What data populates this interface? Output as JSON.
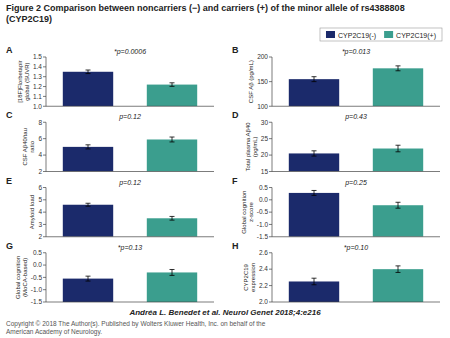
{
  "title": "Figure 2 Comparison between noncarriers (−) and carriers (+) of the minor allele of rs4388808\n(CYP2C19)",
  "subtitle": "Andréa L. Benedet et al. Neurol Genet 2018;4:e216",
  "annotations": [
    "Copyright © 2018 The Author(s). Published by Wolters Kluwer Health, Inc. on behalf of the\nAmerican Academy of Neurology."
  ],
  "legend": "upper right",
  "chart_data": [
    {
      "type": "bar",
      "title": "A",
      "annotations": [
        "*p=0.0006"
      ],
      "ylabel": "[18F]Florbetapir\nglobal (SUVR)",
      "categories": [
        null
      ],
      "series": [
        {
          "name": "CYP2C19(-)",
          "color": "#1b2a6b",
          "values": [
            1.35
          ],
          "errors": [
            0.018
          ]
        },
        {
          "name": "CYP2C19(+)",
          "color": "#3b9e8e",
          "values": [
            1.22
          ],
          "errors": [
            0.018
          ]
        }
      ],
      "ylim": [
        1.0,
        1.5
      ],
      "yticks": [
        {
          "value": 1.0,
          "label": "1.0"
        },
        1.1,
        1.2,
        1.3,
        1.4,
        1.5
      ],
      "tick_labels": "y"
    },
    {
      "type": "bar",
      "title": "B",
      "annotations": [
        "*p=0.013"
      ],
      "ylabel": "CSF Aβ (pg/mL)",
      "categories": [
        null
      ],
      "series": [
        {
          "name": "CYP2C19(-)",
          "color": "#1b2a6b",
          "values": [
            155
          ],
          "errors": [
            5
          ]
        },
        {
          "name": "CYP2C19(+)",
          "color": "#3b9e8e",
          "values": [
            177
          ],
          "errors": [
            5
          ]
        }
      ],
      "ylim": [
        100,
        200
      ],
      "yticks": [
        100,
        150,
        200
      ],
      "tick_labels": "y"
    },
    {
      "type": "bar",
      "title": "C",
      "annotations": [
        "p=0.12"
      ],
      "ylabel": "CSF Aβ40/tau ratio",
      "categories": [
        null
      ],
      "series": [
        {
          "name": "CYP2C19(-)",
          "color": "#1b2a6b",
          "values": [
            5.0
          ],
          "errors": [
            0.25
          ]
        },
        {
          "name": "CYP2C19(+)",
          "color": "#3b9e8e",
          "values": [
            5.9
          ],
          "errors": [
            0.3
          ]
        }
      ],
      "ylim": [
        2,
        8
      ],
      "yticks": [
        2,
        4,
        6,
        8
      ],
      "tick_labels": "y"
    },
    {
      "type": "bar",
      "title": "D",
      "annotations": [
        "p=0.43"
      ],
      "ylabel": "Total plasma Aβ40\n(pg/mL)",
      "categories": [
        null
      ],
      "series": [
        {
          "name": "CYP2C19(-)",
          "color": "#1b2a6b",
          "values": [
            20.5
          ],
          "errors": [
            0.8
          ]
        },
        {
          "name": "CYP2C19(+)",
          "color": "#3b9e8e",
          "values": [
            22.0
          ],
          "errors": [
            1.0
          ]
        }
      ],
      "ylim": [
        15,
        30
      ],
      "yticks": [
        15,
        20,
        25,
        30
      ],
      "tick_labels": "y"
    },
    {
      "type": "bar",
      "title": "E",
      "annotations": [
        "p=0.12"
      ],
      "ylabel": "Amyloid load",
      "categories": [
        null
      ],
      "series": [
        {
          "name": "CYP2C19(-)",
          "color": "#1b2a6b",
          "values": [
            4.6
          ],
          "errors": [
            0.12
          ]
        },
        {
          "name": "CYP2C19(+)",
          "color": "#3b9e8e",
          "values": [
            3.5
          ],
          "errors": [
            0.15
          ]
        }
      ],
      "ylim": [
        2,
        6
      ],
      "yticks": [
        2,
        3,
        4,
        5,
        6
      ],
      "tick_labels": "y"
    },
    {
      "type": "bar",
      "title": "F",
      "annotations": [
        "p=0.25"
      ],
      "ylabel": "Global cognition z-score",
      "categories": [
        null
      ],
      "series": [
        {
          "name": "CYP2C19(-)",
          "color": "#1b2a6b",
          "values": [
            0.28
          ],
          "errors": [
            0.1
          ]
        },
        {
          "name": "CYP2C19(+)",
          "color": "#3b9e8e",
          "values": [
            -0.22
          ],
          "errors": [
            0.12
          ]
        }
      ],
      "ylim": [
        -1.5,
        0.5
      ],
      "yticks": [
        -1.5,
        {
          "value": -1.0,
          "label": "-1.0"
        },
        -0.5,
        {
          "value": 0.0,
          "label": "0.0"
        },
        0.5
      ],
      "tick_labels": "y"
    },
    {
      "type": "bar",
      "title": "G",
      "annotations": [
        "*p=0.13"
      ],
      "ylabel": "Global cognition\n(MoCA-based)",
      "categories": [
        null
      ],
      "series": [
        {
          "name": "CYP2C19(-)",
          "color": "#1b2a6b",
          "values": [
            -0.55
          ],
          "errors": [
            0.1
          ]
        },
        {
          "name": "CYP2C19(+)",
          "color": "#3b9e8e",
          "values": [
            -0.3
          ],
          "errors": [
            0.12
          ]
        }
      ],
      "ylim": [
        -1.5,
        0.5
      ],
      "yticks": [
        -1.5,
        {
          "value": -1.0,
          "label": "-1.0"
        },
        -0.5,
        {
          "value": 0.0,
          "label": "0.0"
        },
        0.5
      ],
      "tick_labels": "y"
    },
    {
      "type": "bar",
      "title": "H",
      "annotations": [
        "*p=0.10"
      ],
      "ylabel": "CYP2C19 expression",
      "categories": [
        null
      ],
      "series": [
        {
          "name": "CYP2C19(-)",
          "color": "#1b2a6b",
          "values": [
            2.25
          ],
          "errors": [
            0.04
          ]
        },
        {
          "name": "CYP2C19(+)",
          "color": "#3b9e8e",
          "values": [
            2.4
          ],
          "errors": [
            0.04
          ]
        }
      ],
      "ylim": [
        2.0,
        2.6
      ],
      "yticks": [
        {
          "value": 2.0,
          "label": "2.0"
        },
        2.2,
        2.4,
        2.6
      ],
      "tick_labels": "y"
    }
  ]
}
